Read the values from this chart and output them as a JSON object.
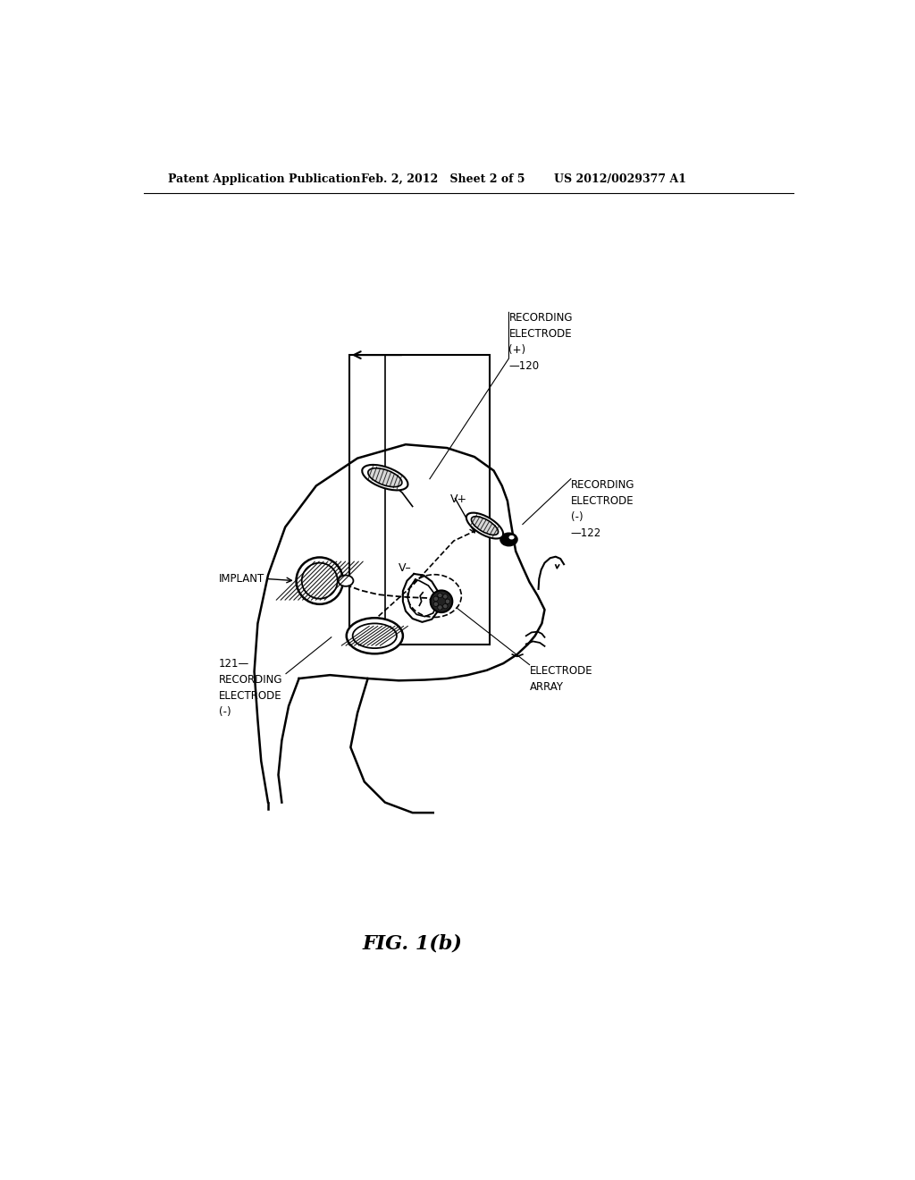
{
  "background_color": "#ffffff",
  "fig_width": 10.24,
  "fig_height": 13.2,
  "dpi": 100,
  "header_left": "Patent Application Publication",
  "header_mid": "Feb. 2, 2012   Sheet 2 of 5",
  "header_right": "US 2012/0029377 A1",
  "figure_label": "FIG. 1(b)",
  "label_rec_elec_plus": "RECORDING\nELECTRODE\n(+)\n—120",
  "label_rec_elec_minus_122": "RECORDING\nELECTRODE\n(-)\n—122",
  "label_implant": "IMPLANT",
  "label_rec_elec_121": "121—\nRECORDING\nELECTRODE\n(-)",
  "label_electrode_array": "ELECTRODE\nARRAY",
  "label_vplus": "V+",
  "label_vminus": "V–"
}
